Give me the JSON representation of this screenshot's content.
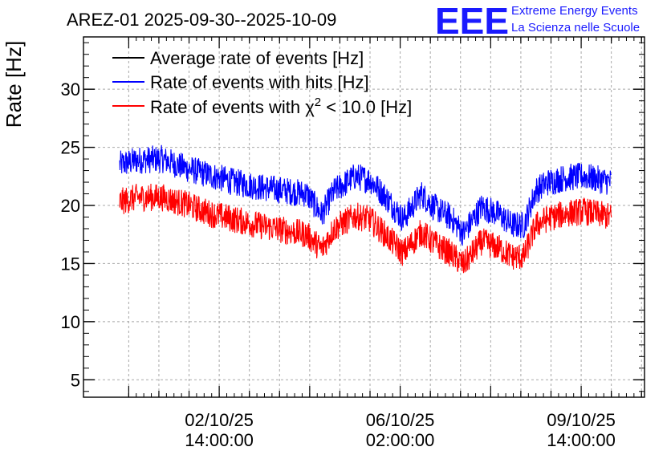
{
  "chart_data": {
    "type": "line",
    "title": "AREZ-01 2025-09-30--2025-10-09",
    "xlabel": "",
    "ylabel": "Rate [Hz]",
    "ylim": [
      3.5,
      34.5
    ],
    "yticks": [
      5,
      10,
      15,
      20,
      25,
      30
    ],
    "xlim_days": [
      0,
      9.3
    ],
    "xticks": [
      {
        "day": 2.25,
        "line1": "02/10/25",
        "line2": "14:00:00"
      },
      {
        "day": 5.25,
        "line1": "06/10/25",
        "line2": "02:00:00"
      },
      {
        "day": 8.25,
        "line1": "09/10/25",
        "line2": "14:00:00"
      }
    ],
    "data_range_days": [
      0.6,
      8.75
    ],
    "series": [
      {
        "name": "Average rate of events [Hz]",
        "color": "#000000",
        "x": [],
        "values": []
      },
      {
        "name": "Rate of events with hits [Hz]",
        "color": "#0000ff",
        "band": 1.2,
        "x": [
          0.6,
          0.9,
          1.3,
          1.7,
          2.1,
          2.5,
          2.9,
          3.3,
          3.7,
          3.95,
          4.15,
          4.5,
          4.75,
          5.0,
          5.3,
          5.6,
          5.8,
          6.1,
          6.3,
          6.6,
          6.9,
          7.1,
          7.3,
          7.5,
          7.7,
          8.0,
          8.3,
          8.75
        ],
        "values": [
          23.5,
          23.9,
          24.0,
          23.2,
          22.6,
          22.0,
          21.6,
          21.3,
          21.0,
          19.2,
          21.2,
          22.5,
          22.2,
          20.8,
          18.8,
          21.0,
          19.9,
          18.9,
          17.6,
          19.9,
          19.2,
          18.3,
          18.3,
          21.3,
          22.0,
          22.4,
          22.5,
          22.0
        ]
      },
      {
        "name": "Rate of events with χ² < 10.0 [Hz]",
        "color": "#ff0000",
        "band": 1.2,
        "x": [
          0.6,
          0.9,
          1.3,
          1.7,
          2.1,
          2.5,
          2.9,
          3.3,
          3.7,
          3.95,
          4.15,
          4.5,
          4.75,
          5.0,
          5.3,
          5.6,
          5.8,
          6.1,
          6.3,
          6.6,
          6.9,
          7.1,
          7.3,
          7.5,
          7.7,
          8.0,
          8.3,
          8.75
        ],
        "values": [
          20.3,
          20.7,
          20.7,
          20.1,
          19.3,
          18.8,
          18.3,
          17.9,
          17.5,
          16.2,
          18.0,
          19.1,
          18.8,
          17.5,
          15.9,
          17.7,
          16.8,
          15.8,
          14.9,
          16.9,
          16.3,
          15.6,
          15.6,
          18.3,
          18.9,
          19.3,
          19.5,
          19.0
        ]
      }
    ]
  },
  "legend": {
    "avg_label": "Average rate of events [Hz]",
    "hits_label": "Rate of events with hits [Hz]",
    "chi_prefix": "Rate of events with χ",
    "chi_sup": "2",
    "chi_suffix": " < 10.0 [Hz]"
  },
  "logo": {
    "letters": "EEE",
    "line1": "Extreme Energy Events",
    "line2": "La Scienza nelle Scuole",
    "color": "#1a1aff"
  }
}
